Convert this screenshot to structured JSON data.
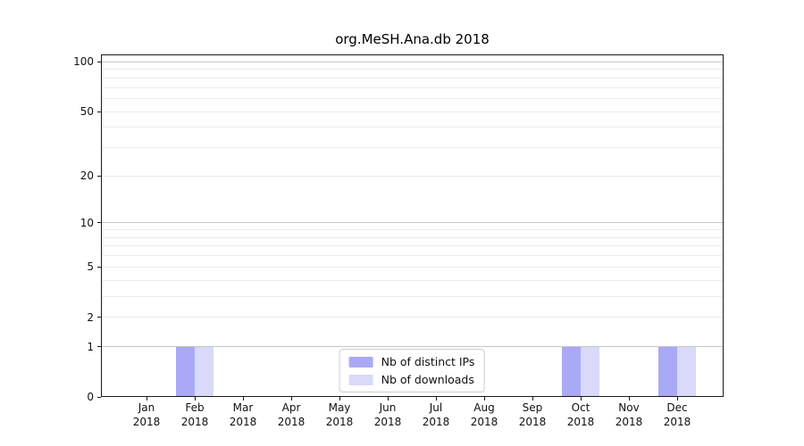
{
  "title": "org.MeSH.Ana.db 2018",
  "colors": {
    "distinct_ips": "#a9a9f5",
    "downloads": "#d9d9f8",
    "grid_major": "#c6c6c6",
    "grid_minor": "#ececec",
    "spine": "#1a1a1a",
    "legend_border": "#cccccc",
    "background": "#ffffff"
  },
  "legend": {
    "items": [
      {
        "label": "Nb of distinct IPs"
      },
      {
        "label": "Nb of downloads"
      }
    ]
  },
  "chart_data": {
    "type": "bar",
    "title": "org.MeSH.Ana.db 2018",
    "categories": [
      "Jan",
      "Feb",
      "Mar",
      "Apr",
      "May",
      "Jun",
      "Jul",
      "Aug",
      "Sep",
      "Oct",
      "Nov",
      "Dec"
    ],
    "x_year_label": "2018",
    "series": [
      {
        "name": "Nb of distinct IPs",
        "color": "#a9a9f5",
        "values": [
          0,
          1,
          0,
          0,
          0,
          0,
          0,
          0,
          0,
          1,
          0,
          1
        ]
      },
      {
        "name": "Nb of downloads",
        "color": "#d9d9f8",
        "values": [
          0,
          1,
          0,
          0,
          0,
          0,
          0,
          0,
          0,
          1,
          0,
          1
        ]
      }
    ],
    "yscale": "log1p",
    "ylim": [
      0,
      111
    ],
    "yticks": [
      0,
      1,
      2,
      5,
      10,
      20,
      50,
      100
    ],
    "major_gridlines": [
      1,
      10,
      100
    ],
    "minor_gridlines": [
      2,
      3,
      4,
      5,
      6,
      7,
      8,
      9,
      20,
      30,
      40,
      50,
      60,
      70,
      80,
      90
    ],
    "grid": true,
    "legend_position": "lower center"
  }
}
